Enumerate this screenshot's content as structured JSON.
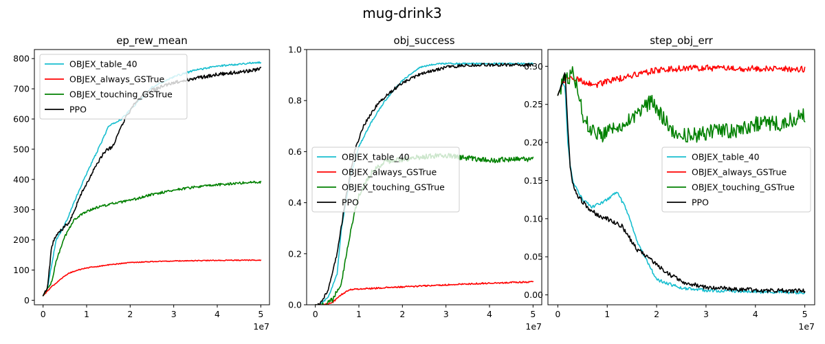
{
  "figure_title": "mug-drink3",
  "colors": {
    "OBJEX_table_40": "#17becf",
    "OBJEX_always_GSTrue": "#ff0000",
    "OBJEX_touching_GSTrue": "#008000",
    "PPO": "#000000"
  },
  "chart_data": [
    {
      "type": "line",
      "title": "ep_rew_mean",
      "xlabel": "",
      "ylabel": "",
      "x_offset_text": "1e7",
      "xlim": [
        -0.2,
        5.2
      ],
      "ylim": [
        -15,
        830
      ],
      "xticks": [
        0,
        1,
        2,
        3,
        4,
        5
      ],
      "xtick_labels": [
        "0",
        "1",
        "2",
        "3",
        "4",
        "5"
      ],
      "yticks": [
        0,
        100,
        200,
        300,
        400,
        500,
        600,
        700,
        800
      ],
      "ytick_labels": [
        "0",
        "100",
        "200",
        "300",
        "400",
        "500",
        "600",
        "700",
        "800"
      ],
      "legend": "upper-left",
      "series": [
        {
          "name": "OBJEX_table_40",
          "x": [
            0,
            0.1,
            0.2,
            0.3,
            0.5,
            0.7,
            1.0,
            1.3,
            1.5,
            1.8,
            2.0,
            2.5,
            3.0,
            3.5,
            4.0,
            4.5,
            5.0
          ],
          "y": [
            15,
            40,
            120,
            200,
            250,
            320,
            420,
            510,
            575,
            600,
            630,
            705,
            740,
            762,
            775,
            782,
            788
          ],
          "noise": 3
        },
        {
          "name": "OBJEX_always_GSTrue",
          "x": [
            0,
            0.2,
            0.4,
            0.6,
            0.8,
            1.0,
            1.5,
            2.0,
            2.5,
            3.0,
            4.0,
            5.0
          ],
          "y": [
            15,
            45,
            70,
            90,
            100,
            107,
            117,
            125,
            128,
            130,
            132,
            133
          ],
          "noise": 1.5
        },
        {
          "name": "OBJEX_touching_GSTrue",
          "x": [
            0,
            0.2,
            0.3,
            0.5,
            0.7,
            1.0,
            1.3,
            1.6,
            2.0,
            2.5,
            3.0,
            3.5,
            4.0,
            4.5,
            5.0
          ],
          "y": [
            15,
            60,
            130,
            210,
            265,
            295,
            310,
            320,
            330,
            350,
            365,
            375,
            382,
            388,
            392
          ],
          "noise": 4
        },
        {
          "name": "PPO",
          "x": [
            0,
            0.1,
            0.2,
            0.3,
            0.6,
            0.9,
            1.2,
            1.4,
            1.6,
            1.9,
            2.2,
            2.5,
            3.0,
            3.5,
            4.0,
            4.5,
            5.0
          ],
          "y": [
            15,
            45,
            180,
            215,
            260,
            360,
            440,
            490,
            510,
            605,
            670,
            695,
            720,
            735,
            748,
            755,
            765
          ],
          "noise": 6
        }
      ]
    },
    {
      "type": "line",
      "title": "obj_success",
      "xlabel": "",
      "ylabel": "",
      "x_offset_text": "1e7",
      "xlim": [
        -0.2,
        5.2
      ],
      "ylim": [
        0,
        1.0
      ],
      "xticks": [
        0,
        1,
        2,
        3,
        4,
        5
      ],
      "xtick_labels": [
        "0",
        "1",
        "2",
        "3",
        "4",
        "5"
      ],
      "yticks": [
        0.0,
        0.2,
        0.4,
        0.6,
        0.8,
        1.0
      ],
      "ytick_labels": [
        "0.0",
        "0.2",
        "0.4",
        "0.6",
        "0.8",
        "1.0"
      ],
      "legend": "center-left",
      "series": [
        {
          "name": "OBJEX_table_40",
          "x": [
            0,
            0.1,
            0.3,
            0.5,
            0.6,
            0.8,
            1.0,
            1.3,
            1.6,
            2.0,
            2.4,
            2.8,
            3.2,
            4.0,
            5.0
          ],
          "y": [
            0,
            0.0,
            0.03,
            0.12,
            0.3,
            0.5,
            0.62,
            0.72,
            0.8,
            0.88,
            0.93,
            0.945,
            0.945,
            0.945,
            0.945
          ],
          "noise": 0.003
        },
        {
          "name": "OBJEX_always_GSTrue",
          "x": [
            0,
            0.2,
            0.4,
            0.6,
            0.8,
            1.0,
            1.5,
            2.0,
            3.0,
            4.0,
            5.0
          ],
          "y": [
            0,
            0.0,
            0.01,
            0.04,
            0.06,
            0.062,
            0.066,
            0.07,
            0.078,
            0.085,
            0.09
          ],
          "noise": 0.003
        },
        {
          "name": "OBJEX_touching_GSTrue",
          "x": [
            0,
            0.2,
            0.4,
            0.6,
            0.8,
            1.0,
            1.3,
            1.6,
            2.0,
            2.5,
            3.0,
            3.5,
            4.0,
            4.5,
            5.0
          ],
          "y": [
            0,
            0.0,
            0.02,
            0.09,
            0.28,
            0.43,
            0.52,
            0.56,
            0.57,
            0.58,
            0.585,
            0.575,
            0.565,
            0.57,
            0.57
          ],
          "noise": 0.01
        },
        {
          "name": "PPO",
          "x": [
            0,
            0.1,
            0.3,
            0.5,
            0.7,
            0.9,
            1.1,
            1.4,
            1.7,
            2.0,
            2.5,
            3.0,
            3.5,
            4.0,
            5.0
          ],
          "y": [
            0,
            0.0,
            0.06,
            0.2,
            0.42,
            0.6,
            0.7,
            0.78,
            0.83,
            0.87,
            0.91,
            0.93,
            0.94,
            0.94,
            0.94
          ],
          "noise": 0.006
        }
      ]
    },
    {
      "type": "line",
      "title": "step_obj_err",
      "xlabel": "",
      "ylabel": "",
      "x_offset_text": "1e7",
      "xlim": [
        -0.2,
        5.2
      ],
      "ylim": [
        -0.013,
        0.322
      ],
      "xticks": [
        0,
        1,
        2,
        3,
        4,
        5
      ],
      "xtick_labels": [
        "0",
        "1",
        "2",
        "3",
        "4",
        "5"
      ],
      "yticks": [
        0.0,
        0.05,
        0.1,
        0.15,
        0.2,
        0.25,
        0.3
      ],
      "ytick_labels": [
        "0.00",
        "0.05",
        "0.10",
        "0.15",
        "0.20",
        "0.25",
        "0.30"
      ],
      "legend": "center-right",
      "series": [
        {
          "name": "OBJEX_table_40",
          "x": [
            0,
            0.1,
            0.15,
            0.2,
            0.25,
            0.3,
            0.5,
            0.7,
            1.0,
            1.2,
            1.4,
            1.6,
            1.8,
            2.0,
            2.5,
            3.0,
            4.0,
            5.0
          ],
          "y": [
            0.262,
            0.28,
            0.27,
            0.2,
            0.17,
            0.15,
            0.125,
            0.115,
            0.125,
            0.135,
            0.11,
            0.07,
            0.045,
            0.02,
            0.009,
            0.006,
            0.004,
            0.003
          ],
          "noise": 0.002
        },
        {
          "name": "OBJEX_always_GSTrue",
          "x": [
            0,
            0.1,
            0.2,
            0.4,
            0.6,
            0.8,
            1.0,
            1.5,
            2.0,
            2.5,
            3.0,
            3.5,
            4.0,
            5.0
          ],
          "y": [
            0.262,
            0.28,
            0.285,
            0.283,
            0.278,
            0.276,
            0.28,
            0.288,
            0.295,
            0.297,
            0.298,
            0.297,
            0.297,
            0.296
          ],
          "noise": 0.004
        },
        {
          "name": "OBJEX_touching_GSTrue",
          "x": [
            0,
            0.1,
            0.2,
            0.3,
            0.4,
            0.5,
            0.7,
            0.9,
            1.1,
            1.3,
            1.6,
            1.9,
            2.1,
            2.4,
            2.8,
            3.2,
            3.6,
            4.0,
            4.5,
            5.0
          ],
          "y": [
            0.262,
            0.28,
            0.285,
            0.29,
            0.275,
            0.235,
            0.215,
            0.21,
            0.22,
            0.225,
            0.235,
            0.255,
            0.235,
            0.21,
            0.21,
            0.215,
            0.215,
            0.225,
            0.225,
            0.235
          ],
          "noise": 0.01
        },
        {
          "name": "PPO",
          "x": [
            0,
            0.1,
            0.15,
            0.2,
            0.25,
            0.3,
            0.4,
            0.6,
            0.8,
            1.0,
            1.3,
            1.6,
            1.8,
            2.0,
            2.3,
            2.6,
            3.0,
            4.0,
            5.0
          ],
          "y": [
            0.262,
            0.28,
            0.292,
            0.22,
            0.17,
            0.145,
            0.13,
            0.115,
            0.105,
            0.1,
            0.09,
            0.06,
            0.05,
            0.04,
            0.025,
            0.015,
            0.01,
            0.006,
            0.005
          ],
          "noise": 0.003
        }
      ]
    }
  ]
}
